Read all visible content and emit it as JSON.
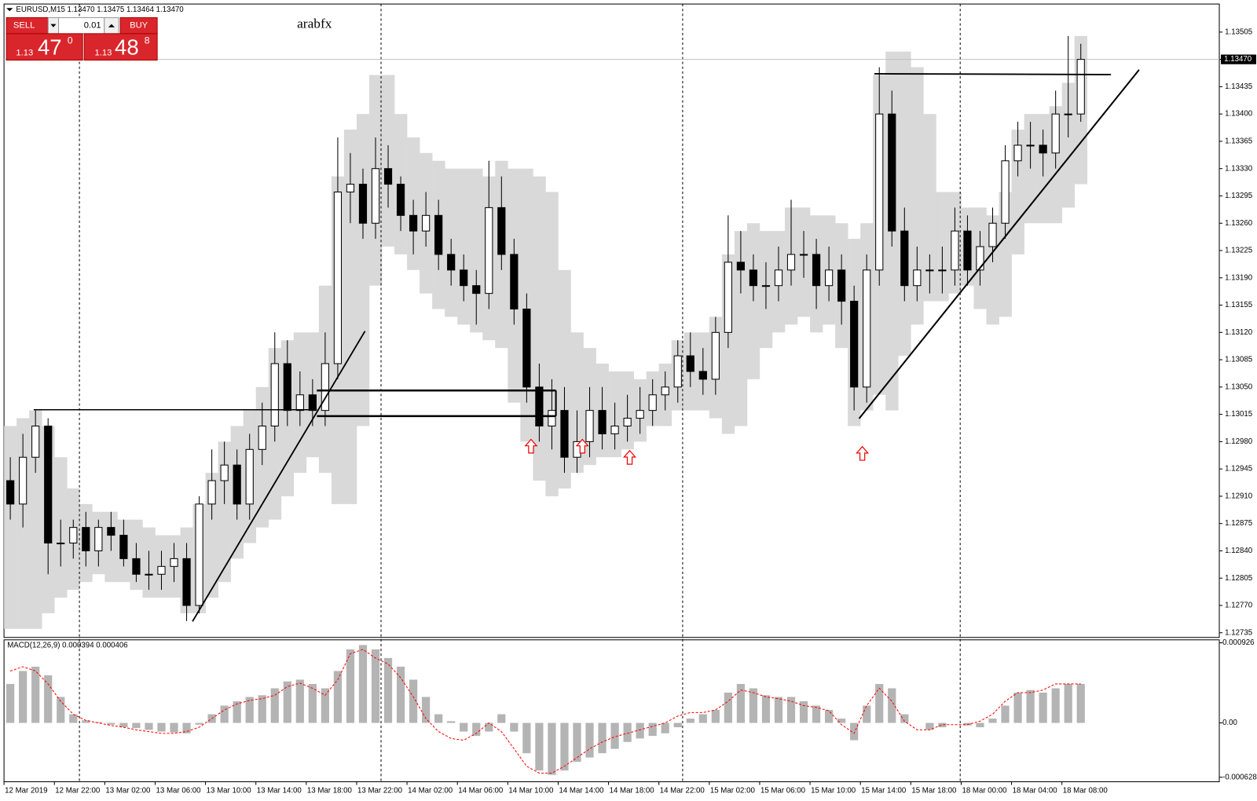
{
  "chart_data": {
    "type": "candlestick",
    "title": "EURUSD,M15  1.13470 1.13475 1.13464 1.13470",
    "watermark": "arabfx",
    "categories": [
      "12 Mar 2019",
      null,
      null,
      null,
      "12 Mar 22:00",
      null,
      null,
      null,
      "13 Mar 02:00",
      null,
      null,
      null,
      "13 Mar 06:00",
      null,
      null,
      null,
      "13 Mar 10:00",
      null,
      null,
      null,
      "13 Mar 14:00",
      null,
      null,
      null,
      "13 Mar 18:00",
      null,
      null,
      null,
      "13 Mar 22:00",
      null,
      null,
      null,
      "14 Mar 02:00",
      null,
      null,
      null,
      "14 Mar 06:00",
      null,
      null,
      null,
      "14 Mar 10:00",
      null,
      null,
      null,
      "14 Mar 14:00",
      null,
      null,
      null,
      "14 Mar 18:00",
      null,
      null,
      null,
      "14 Mar 22:00",
      null,
      null,
      null,
      "15 Mar 02:00",
      null,
      null,
      null,
      "15 Mar 06:00",
      null,
      null,
      null,
      "15 Mar 10:00",
      null,
      null,
      null,
      "15 Mar 14:00",
      null,
      null,
      null,
      "15 Mar 18:00",
      null,
      null,
      null,
      "18 Mar 00:00",
      null,
      null,
      null,
      "18 Mar 04:00",
      null,
      null,
      null,
      "18 Mar 08:00",
      null
    ],
    "open": [
      1.1293,
      1.129,
      1.1296,
      1.13,
      1.1285,
      1.1285,
      1.1287,
      1.1284,
      1.1287,
      1.1286,
      1.1283,
      1.1281,
      1.1281,
      1.1282,
      1.1283,
      1.1277,
      1.129,
      1.1293,
      1.1295,
      1.129,
      1.1297,
      1.13,
      1.1308,
      1.1302,
      1.1304,
      1.1302,
      1.1308,
      1.133,
      1.1331,
      1.1326,
      1.1333,
      1.1331,
      1.1327,
      1.1325,
      1.1327,
      1.1322,
      1.132,
      1.1318,
      1.1317,
      1.1328,
      1.1322,
      1.1315,
      1.1305,
      1.13,
      1.1302,
      1.1296,
      1.1298,
      1.1302,
      1.1299,
      1.13,
      1.1301,
      1.1302,
      1.1304,
      1.1305,
      1.1309,
      1.1307,
      1.1306,
      1.1312,
      1.1321,
      1.132,
      1.1318,
      1.1318,
      1.132,
      1.1322,
      1.1322,
      1.1318,
      1.132,
      1.1316,
      1.1305,
      1.132,
      1.134,
      1.1325,
      1.1318,
      1.132,
      1.132,
      1.132,
      1.1325,
      1.132,
      1.1323,
      1.1326,
      1.1334,
      1.1336,
      1.1336,
      1.1335,
      1.134,
      1.134
    ],
    "high": [
      1.1296,
      1.1299,
      1.1302,
      1.1301,
      1.1288,
      1.1288,
      1.1289,
      1.1288,
      1.1289,
      1.1288,
      1.1285,
      1.1284,
      1.1284,
      1.1285,
      1.1285,
      1.1291,
      1.1297,
      1.1298,
      1.1297,
      1.1299,
      1.1303,
      1.1312,
      1.1311,
      1.1307,
      1.1306,
      1.1312,
      1.1337,
      1.1335,
      1.1333,
      1.1337,
      1.1336,
      1.1332,
      1.1329,
      1.133,
      1.1329,
      1.1324,
      1.1322,
      1.132,
      1.1334,
      1.1332,
      1.1324,
      1.1317,
      1.1308,
      1.1306,
      1.1305,
      1.1302,
      1.1305,
      1.1305,
      1.1303,
      1.1304,
      1.1305,
      1.1306,
      1.1307,
      1.1311,
      1.1312,
      1.131,
      1.1314,
      1.1327,
      1.1325,
      1.1322,
      1.1321,
      1.1323,
      1.1329,
      1.1325,
      1.1324,
      1.1323,
      1.1322,
      1.1318,
      1.1322,
      1.1346,
      1.1343,
      1.1328,
      1.1323,
      1.1322,
      1.1323,
      1.1328,
      1.1327,
      1.1325,
      1.1328,
      1.1336,
      1.1339,
      1.1339,
      1.1338,
      1.1343,
      1.135,
      1.1349
    ],
    "low": [
      1.1288,
      1.1287,
      1.1294,
      1.1281,
      1.1282,
      1.1283,
      1.1282,
      1.1282,
      1.1284,
      1.1282,
      1.128,
      1.1279,
      1.1279,
      1.128,
      1.1275,
      1.1276,
      1.1288,
      1.129,
      1.1288,
      1.1288,
      1.1295,
      1.1298,
      1.13,
      1.13,
      1.13,
      1.13,
      1.1306,
      1.1326,
      1.1324,
      1.1324,
      1.1328,
      1.1325,
      1.1322,
      1.1323,
      1.132,
      1.1318,
      1.1316,
      1.1313,
      1.1315,
      1.132,
      1.1313,
      1.1303,
      1.1298,
      1.1297,
      1.1294,
      1.1294,
      1.1296,
      1.1297,
      1.1297,
      1.1298,
      1.1299,
      1.13,
      1.1302,
      1.1303,
      1.1305,
      1.1304,
      1.1304,
      1.131,
      1.1317,
      1.1316,
      1.1315,
      1.1316,
      1.1318,
      1.1319,
      1.1315,
      1.1316,
      1.1313,
      1.1302,
      1.1303,
      1.1318,
      1.1323,
      1.1316,
      1.1316,
      1.1317,
      1.1317,
      1.1318,
      1.1318,
      1.1318,
      1.1321,
      1.1324,
      1.1332,
      1.1333,
      1.1332,
      1.1333,
      1.1337,
      1.1339
    ],
    "close": [
      1.129,
      1.1296,
      1.13,
      1.1285,
      1.1285,
      1.1287,
      1.1284,
      1.1287,
      1.1286,
      1.1283,
      1.1281,
      1.1281,
      1.1282,
      1.1283,
      1.1277,
      1.129,
      1.1293,
      1.1295,
      1.129,
      1.1297,
      1.13,
      1.1308,
      1.1302,
      1.1304,
      1.1302,
      1.1308,
      1.133,
      1.1331,
      1.1326,
      1.1333,
      1.1331,
      1.1327,
      1.1325,
      1.1327,
      1.1322,
      1.132,
      1.1318,
      1.1317,
      1.1328,
      1.1322,
      1.1315,
      1.1305,
      1.13,
      1.1302,
      1.1296,
      1.1298,
      1.1302,
      1.1299,
      1.13,
      1.1301,
      1.1302,
      1.1304,
      1.1305,
      1.1309,
      1.1307,
      1.1306,
      1.1312,
      1.1321,
      1.132,
      1.1318,
      1.1318,
      1.132,
      1.1322,
      1.1322,
      1.1318,
      1.132,
      1.1316,
      1.1305,
      1.132,
      1.134,
      1.1325,
      1.1318,
      1.132,
      1.132,
      1.132,
      1.1325,
      1.132,
      1.1323,
      1.1326,
      1.1334,
      1.1336,
      1.1336,
      1.1335,
      1.134,
      1.134,
      1.1347
    ],
    "up_color": "#ffffff",
    "down_color": "#000000",
    "bands": {
      "color": "#d9d9d9",
      "upper": [
        1.13,
        1.1301,
        1.1302,
        1.13,
        1.1296,
        1.1292,
        1.129,
        1.1289,
        1.1289,
        1.1288,
        1.1288,
        1.1287,
        1.1286,
        1.1286,
        1.1287,
        1.129,
        1.1294,
        1.1298,
        1.13,
        1.1302,
        1.1305,
        1.131,
        1.1311,
        1.1312,
        1.1312,
        1.1318,
        1.1332,
        1.1338,
        1.134,
        1.1345,
        1.1345,
        1.134,
        1.1337,
        1.1335,
        1.1334,
        1.1333,
        1.1333,
        1.1333,
        1.1332,
        1.1334,
        1.1333,
        1.1333,
        1.1332,
        1.133,
        1.132,
        1.1312,
        1.131,
        1.1308,
        1.1307,
        1.1307,
        1.1306,
        1.1307,
        1.1308,
        1.1311,
        1.1312,
        1.1312,
        1.1314,
        1.1322,
        1.1325,
        1.1326,
        1.1325,
        1.1325,
        1.1328,
        1.1328,
        1.1327,
        1.1327,
        1.1326,
        1.1324,
        1.1326,
        1.1345,
        1.1348,
        1.1348,
        1.1346,
        1.134,
        1.133,
        1.133,
        1.1328,
        1.1328,
        1.1327,
        1.133,
        1.1338,
        1.134,
        1.134,
        1.1341,
        1.1344,
        1.135
      ],
      "lower": [
        1.1274,
        1.1274,
        1.1274,
        1.1276,
        1.1278,
        1.1279,
        1.128,
        1.1281,
        1.128,
        1.128,
        1.1279,
        1.1278,
        1.1278,
        1.1278,
        1.1276,
        1.1276,
        1.1278,
        1.128,
        1.1283,
        1.1285,
        1.1287,
        1.1288,
        1.1291,
        1.1294,
        1.1296,
        1.1294,
        1.129,
        1.129,
        1.13,
        1.1318,
        1.1323,
        1.1322,
        1.132,
        1.1317,
        1.1315,
        1.1314,
        1.1313,
        1.1312,
        1.1311,
        1.131,
        1.1303,
        1.1298,
        1.1293,
        1.1291,
        1.1292,
        1.1294,
        1.1295,
        1.1296,
        1.1296,
        1.1297,
        1.1298,
        1.13,
        1.13,
        1.1302,
        1.1302,
        1.1302,
        1.1301,
        1.1299,
        1.13,
        1.1306,
        1.131,
        1.1312,
        1.1313,
        1.1314,
        1.1312,
        1.1313,
        1.131,
        1.13,
        1.1302,
        1.1304,
        1.1302,
        1.1309,
        1.1313,
        1.1316,
        1.1316,
        1.1317,
        1.1318,
        1.1315,
        1.1313,
        1.1314,
        1.1322,
        1.1326,
        1.1326,
        1.1326,
        1.1328,
        1.1331
      ]
    },
    "ylim": [
      1.12729,
      1.13541
    ],
    "yticks": [
      1.12735,
      {
        "value": 1.1277,
        "label": "1.12770"
      },
      1.12805,
      {
        "value": 1.1284,
        "label": "1.12840"
      },
      1.12875,
      {
        "value": 1.1291,
        "label": "1.12910"
      },
      1.12945,
      {
        "value": 1.1298,
        "label": "1.12980"
      },
      1.13015,
      {
        "value": 1.1305,
        "label": "1.13050"
      },
      1.13085,
      {
        "value": 1.1312,
        "label": "1.13120"
      },
      1.13155,
      {
        "value": 1.1319,
        "label": "1.13190"
      },
      1.13225,
      {
        "value": 1.1326,
        "label": "1.13260"
      },
      1.13295,
      {
        "value": 1.1333,
        "label": "1.13330"
      },
      1.13365,
      {
        "value": 1.134,
        "label": "1.13400"
      },
      1.13435,
      {
        "value": 1.1347,
        "label": "1.13470"
      },
      1.13505
    ],
    "bid": {
      "value": 1.1347,
      "label": "1.13470"
    },
    "macd": {
      "title": "MACD(12,26,9) 0.000394 0.000406",
      "histogram_color": "#b4b4b4",
      "signal_color": "#ff0000",
      "histogram": [
        0.00045,
        0.0006,
        0.00065,
        0.00055,
        0.0003,
        0.0001,
        3e-05,
        1e-05,
        -2e-05,
        -5e-05,
        -6e-05,
        -8e-05,
        -0.0001,
        -0.00011,
        -0.00012,
        -2e-05,
        0.0001,
        0.0002,
        0.00025,
        0.0003,
        0.00032,
        0.0004,
        0.00048,
        0.0005,
        0.00045,
        0.0004,
        0.0006,
        0.00085,
        0.0009,
        0.00085,
        0.00075,
        0.00065,
        0.0005,
        0.0003,
        0.0001,
        2e-05,
        -0.0001,
        -0.00015,
        -0.0001,
        0.0001,
        -0.0001,
        -0.00035,
        -0.00055,
        -0.0006,
        -0.00055,
        -0.00045,
        -0.0004,
        -0.00035,
        -0.0003,
        -0.00022,
        -0.00018,
        -0.00015,
        -0.00012,
        -5e-05,
        5e-05,
        0.0001,
        0.00015,
        0.00035,
        0.00045,
        0.0004,
        0.00032,
        0.0003,
        0.0003,
        0.00025,
        0.0002,
        0.00015,
        5e-05,
        -0.0002,
        0.0002,
        0.00045,
        0.0004,
        0.0001,
        0,
        -8e-05,
        -5e-05,
        0,
        -3e-05,
        -5e-05,
        5e-05,
        0.0002,
        0.00035,
        0.00038,
        0.00035,
        0.0004,
        0.00045,
        0.00045
      ],
      "signal": [
        0.0006,
        0.00065,
        0.0006,
        0.00045,
        0.00025,
        0.0001,
        3e-05,
        0,
        -3e-05,
        -5e-05,
        -8e-05,
        -0.0001,
        -0.00012,
        -0.00012,
        -0.0001,
        -5e-05,
        5e-05,
        0.00015,
        0.00022,
        0.00026,
        0.00028,
        0.00032,
        0.00042,
        0.00046,
        0.0004,
        0.00032,
        0.0005,
        0.0008,
        0.00085,
        0.00075,
        0.00068,
        0.00052,
        0.0003,
        5e-05,
        -0.0001,
        -0.00018,
        -0.0002,
        -0.00012,
        0,
        -0.0001,
        -0.0003,
        -0.0005,
        -0.00058,
        -0.00058,
        -0.0005,
        -0.0004,
        -0.0003,
        -0.00022,
        -0.00016,
        -0.00012,
        -8e-05,
        -4e-05,
        0,
        8e-05,
        0.00012,
        0.00012,
        0.00015,
        0.00025,
        0.00038,
        0.00035,
        0.0003,
        0.00028,
        0.00025,
        0.0002,
        0.00018,
        0.00014,
        -2e-05,
        -0.00012,
        0.0002,
        0.0004,
        0.00025,
        2e-05,
        -8e-05,
        -8e-05,
        -2e-05,
        -2e-05,
        -2e-05,
        2e-05,
        0.0001,
        0.00025,
        0.00035,
        0.00035,
        0.00038,
        0.00045,
        0.00045,
        0.00045
      ],
      "y2lim": [
        -0.00068,
        0.00096
      ],
      "y2ticks": [
        0.000926,
        {
          "value": 0,
          "label": "0.00"
        },
        -0.000628
      ]
    }
  },
  "trade_panel": {
    "sell": "SELL",
    "buy": "BUY",
    "lot": 0.01,
    "sell_price": {
      "big_figure": 1.13,
      "pips": 47,
      "fraction": 0
    },
    "buy_price": {
      "big_figure": 1.13,
      "pips": 48,
      "fraction": 8
    }
  }
}
